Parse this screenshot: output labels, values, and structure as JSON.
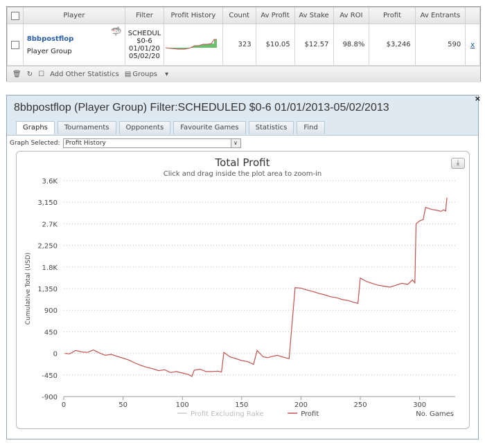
{
  "summary": {
    "headers": [
      "Player",
      "Filter",
      "Profit History",
      "Count",
      "Av Profit",
      "Av Stake",
      "Av ROI",
      "Profit",
      "Av Entrants"
    ],
    "row": {
      "player_name": "8bbpostflop",
      "player_group": "Player Group",
      "filter_lines": [
        "SCHEDUL",
        "$0-6",
        "01/01/20",
        "05/02/20"
      ],
      "count": "323",
      "av_profit": "$10.05",
      "av_stake": "$12.57",
      "av_roi": "98.8%",
      "profit": "$3,246",
      "av_entrants": "590",
      "x_link": "x"
    },
    "footer": {
      "add_stats_label": "Add Other Statistics",
      "groups_label": "Groups"
    }
  },
  "panel": {
    "title": "8bbpostflop (Player Group) Filter:SCHEDULED $0-6 01/01/2013-05/02/2013",
    "close_label": "×",
    "tabs": [
      "Graphs",
      "Tournaments",
      "Opponents",
      "Favourite Games",
      "Statistics",
      "Find"
    ],
    "active_tab": "Graphs",
    "graph_selected_label": "Graph Selected:",
    "graph_selected_value": "Profit History"
  },
  "chart_data": {
    "type": "line",
    "title": "Total Profit",
    "subtitle": "Click and drag inside the plot area to zoom-in",
    "xlabel": "No. Games",
    "ylabel": "Cumulative Total (USD)",
    "xlim": [
      0,
      330
    ],
    "ylim": [
      -900,
      3600
    ],
    "x_ticks": [
      0,
      50,
      100,
      150,
      200,
      250,
      300
    ],
    "y_ticks": [
      3600,
      3150,
      2700,
      2250,
      1800,
      1350,
      900,
      450,
      0,
      -450,
      -900
    ],
    "y_tick_labels": [
      "3.6K",
      "3,150",
      "2.7K",
      "2,250",
      "1.8K",
      "1,350",
      "900",
      "450",
      "0",
      "-450",
      "-900"
    ],
    "legend": [
      {
        "name": "Profit Excluding Rake",
        "color": "#cccccc"
      },
      {
        "name": "Profit",
        "color": "#c0504d"
      }
    ],
    "legend_position": "bottom",
    "grid": true,
    "series": [
      {
        "name": "Profit",
        "color": "#c0504d",
        "points": [
          [
            1,
            0
          ],
          [
            5,
            -10
          ],
          [
            10,
            60
          ],
          [
            15,
            30
          ],
          [
            20,
            20
          ],
          [
            25,
            70
          ],
          [
            30,
            10
          ],
          [
            35,
            -40
          ],
          [
            40,
            -20
          ],
          [
            45,
            -60
          ],
          [
            50,
            -100
          ],
          [
            55,
            -140
          ],
          [
            60,
            -200
          ],
          [
            65,
            -250
          ],
          [
            70,
            -290
          ],
          [
            75,
            -320
          ],
          [
            80,
            -360
          ],
          [
            85,
            -340
          ],
          [
            90,
            -400
          ],
          [
            95,
            -380
          ],
          [
            100,
            -410
          ],
          [
            105,
            -440
          ],
          [
            108,
            -480
          ],
          [
            110,
            -350
          ],
          [
            115,
            -330
          ],
          [
            120,
            -380
          ],
          [
            125,
            -380
          ],
          [
            130,
            -370
          ],
          [
            133,
            -390
          ],
          [
            135,
            20
          ],
          [
            140,
            -70
          ],
          [
            145,
            -110
          ],
          [
            150,
            -150
          ],
          [
            155,
            -170
          ],
          [
            160,
            -230
          ],
          [
            163,
            60
          ],
          [
            168,
            -70
          ],
          [
            172,
            -90
          ],
          [
            176,
            -60
          ],
          [
            180,
            -40
          ],
          [
            185,
            -80
          ],
          [
            190,
            -110
          ],
          [
            195,
            1370
          ],
          [
            200,
            1360
          ],
          [
            205,
            1320
          ],
          [
            210,
            1290
          ],
          [
            215,
            1250
          ],
          [
            220,
            1220
          ],
          [
            225,
            1180
          ],
          [
            230,
            1160
          ],
          [
            235,
            1120
          ],
          [
            240,
            1100
          ],
          [
            245,
            1060
          ],
          [
            248,
            1040
          ],
          [
            250,
            1570
          ],
          [
            255,
            1500
          ],
          [
            260,
            1460
          ],
          [
            265,
            1420
          ],
          [
            270,
            1400
          ],
          [
            275,
            1380
          ],
          [
            280,
            1420
          ],
          [
            285,
            1460
          ],
          [
            290,
            1440
          ],
          [
            294,
            1530
          ],
          [
            296,
            1470
          ],
          [
            297,
            2700
          ],
          [
            300,
            2760
          ],
          [
            303,
            2790
          ],
          [
            305,
            3040
          ],
          [
            308,
            3020
          ],
          [
            310,
            3000
          ],
          [
            315,
            2980
          ],
          [
            318,
            2960
          ],
          [
            320,
            2990
          ],
          [
            322,
            2970
          ],
          [
            323,
            3246
          ]
        ]
      }
    ]
  }
}
